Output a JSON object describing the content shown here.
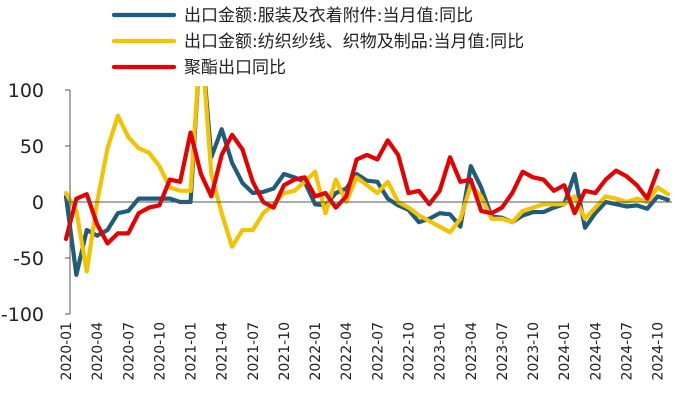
{
  "chart_data": {
    "type": "line",
    "title": "",
    "xlabel": "",
    "ylabel": "",
    "ylim": [
      -100,
      100
    ],
    "yticks": [
      100,
      50,
      0,
      -50,
      -100
    ],
    "grid": false,
    "legend_position": "top",
    "x": [
      "2020-01",
      "2020-02",
      "2020-03",
      "2020-04",
      "2020-05",
      "2020-06",
      "2020-07",
      "2020-08",
      "2020-09",
      "2020-10",
      "2020-11",
      "2020-12",
      "2021-01",
      "2021-02",
      "2021-03",
      "2021-04",
      "2021-05",
      "2021-06",
      "2021-07",
      "2021-08",
      "2021-09",
      "2021-10",
      "2021-11",
      "2021-12",
      "2022-01",
      "2022-02",
      "2022-03",
      "2022-04",
      "2022-05",
      "2022-06",
      "2022-07",
      "2022-08",
      "2022-09",
      "2022-10",
      "2022-11",
      "2022-12",
      "2023-01",
      "2023-02",
      "2023-03",
      "2023-04",
      "2023-05",
      "2023-06",
      "2023-07",
      "2023-08",
      "2023-09",
      "2023-10",
      "2023-11",
      "2023-12",
      "2024-01",
      "2024-02",
      "2024-03",
      "2024-04",
      "2024-05",
      "2024-06",
      "2024-07",
      "2024-08",
      "2024-09",
      "2024-10",
      "2024-11"
    ],
    "tick_labels": [
      "2020-01",
      "2020-04",
      "2020-07",
      "2020-10",
      "2021-01",
      "2021-04",
      "2021-07",
      "2021-10",
      "2022-01",
      "2022-04",
      "2022-07",
      "2022-10",
      "2023-01",
      "2023-04",
      "2023-07",
      "2023-10",
      "2024-01",
      "2024-04",
      "2024-07",
      "2024-10"
    ],
    "series": [
      {
        "name": "出口金额:服装及衣着附件:当月值:同比",
        "color": "#1f5c7a",
        "values": [
          5,
          -65,
          -25,
          -30,
          -25,
          -10,
          -8,
          3,
          3,
          3,
          3,
          0,
          0,
          150,
          40,
          65,
          35,
          17,
          8,
          9,
          12,
          25,
          22,
          18,
          -2,
          -3,
          8,
          12,
          25,
          19,
          18,
          3,
          -3,
          -7,
          -18,
          -15,
          -10,
          -11,
          -22,
          32,
          13,
          -13,
          -14,
          -18,
          -12,
          -9,
          -9,
          -5,
          -2,
          25,
          -23,
          -10,
          0,
          -2,
          -4,
          -3,
          -6,
          5,
          2
        ]
      },
      {
        "name": "出口金额:纺织纱线、织物及制品:当月值:同比",
        "color": "#f5c200",
        "values": [
          8,
          -8,
          -62,
          0,
          48,
          77,
          58,
          48,
          44,
          32,
          13,
          10,
          10,
          150,
          25,
          -10,
          -40,
          -25,
          -25,
          -10,
          -2,
          8,
          10,
          18,
          27,
          -10,
          20,
          0,
          22,
          15,
          8,
          18,
          0,
          -5,
          -12,
          -17,
          -22,
          -27,
          -15,
          15,
          5,
          -15,
          -15,
          -18,
          -8,
          -5,
          -2,
          -2,
          -2,
          5,
          -15,
          -5,
          5,
          3,
          0,
          3,
          0,
          13,
          7
        ]
      },
      {
        "name": "聚酯出口同比",
        "color": "#e60000",
        "values": [
          -33,
          3,
          7,
          -20,
          -37,
          -28,
          -28,
          -10,
          -5,
          -3,
          20,
          18,
          62,
          25,
          5,
          42,
          60,
          47,
          18,
          0,
          -5,
          15,
          20,
          22,
          5,
          8,
          -5,
          5,
          38,
          42,
          38,
          55,
          42,
          8,
          10,
          -2,
          10,
          40,
          18,
          20,
          -8,
          -10,
          -5,
          8,
          27,
          22,
          20,
          10,
          15,
          -10,
          10,
          8,
          20,
          28,
          23,
          15,
          3,
          28,
          null
        ]
      }
    ]
  }
}
